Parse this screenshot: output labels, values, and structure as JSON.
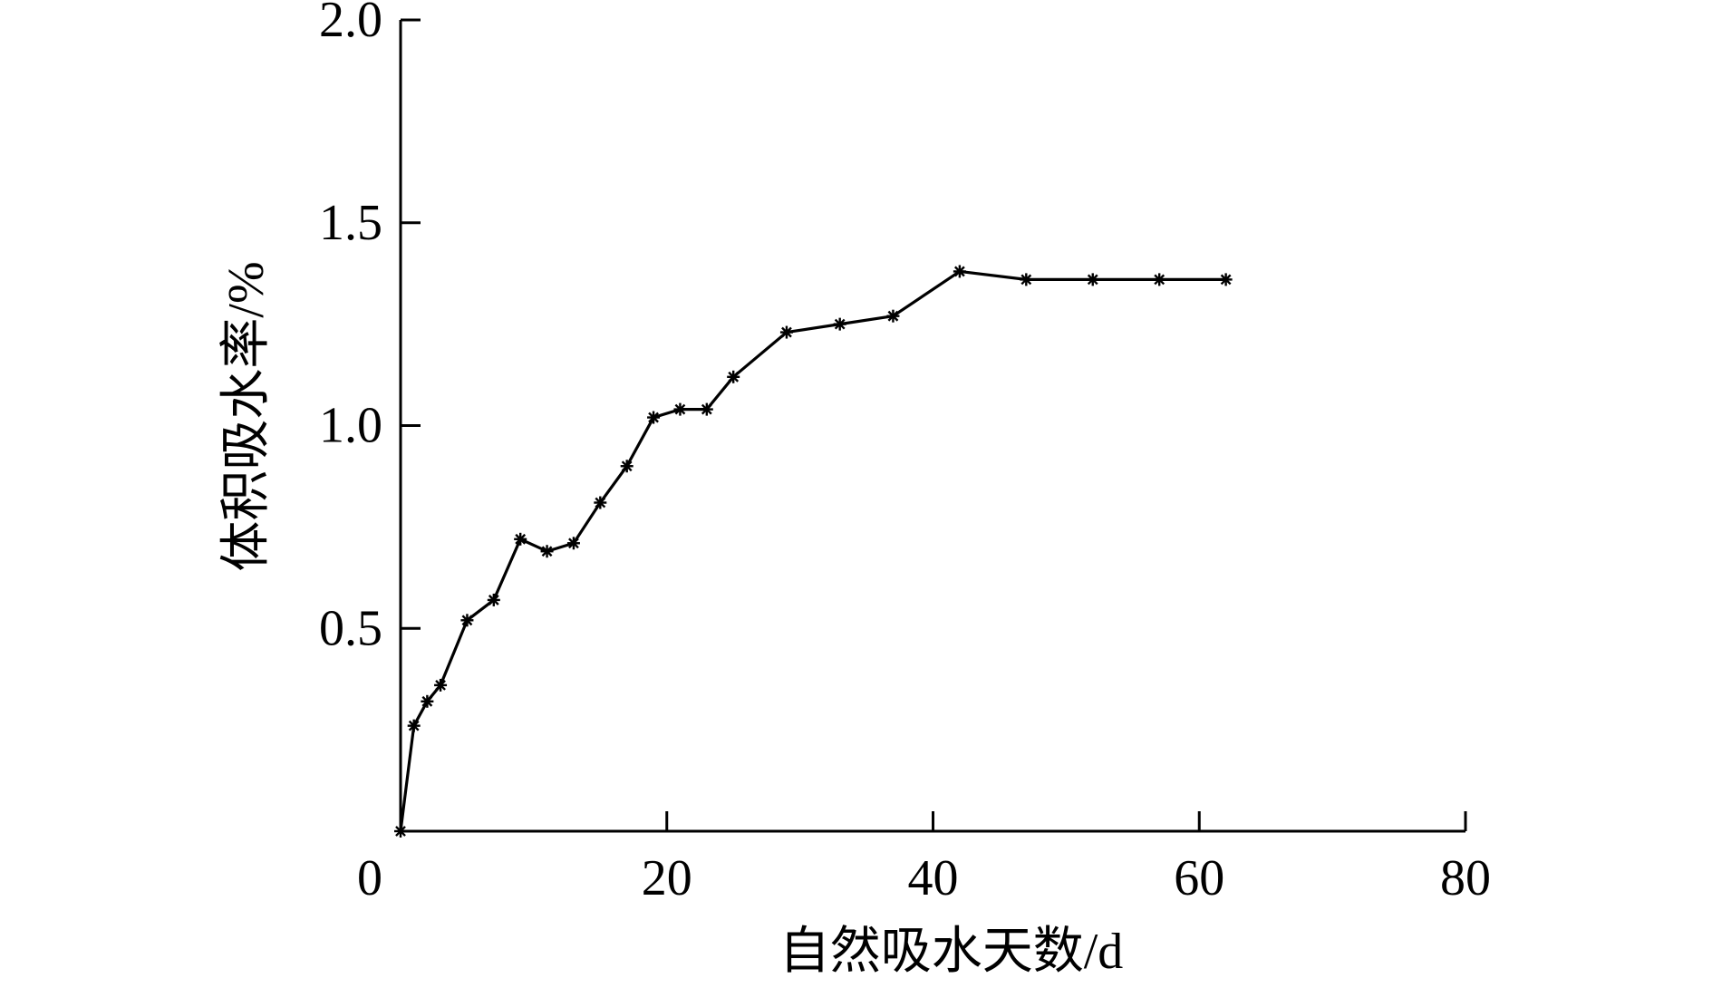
{
  "chart_data": {
    "type": "line",
    "title": "",
    "xlabel": "自然吸水天数/d",
    "ylabel": "体积吸水率/%",
    "xlim": [
      0,
      80
    ],
    "ylim": [
      0,
      2.0
    ],
    "x_ticks": [
      0,
      20,
      40,
      60,
      80
    ],
    "x_tick_labels": [
      "0",
      "20",
      "40",
      "60",
      "80"
    ],
    "y_ticks": [
      0.5,
      1.0,
      1.5,
      2.0
    ],
    "y_tick_labels": [
      "0.5",
      "1.0",
      "1.5",
      "2.0"
    ],
    "grid": false,
    "marker": "asterisk",
    "series": [
      {
        "name": "",
        "color": "#000000",
        "x": [
          0,
          1,
          2,
          3,
          5,
          7,
          9,
          11,
          13,
          15,
          17,
          19,
          21,
          23,
          25,
          29,
          33,
          37,
          42,
          47,
          52,
          57,
          62
        ],
        "y": [
          0,
          0.26,
          0.32,
          0.36,
          0.52,
          0.57,
          0.72,
          0.69,
          0.71,
          0.81,
          0.9,
          1.02,
          1.04,
          1.04,
          1.12,
          1.23,
          1.25,
          1.27,
          1.38,
          1.36,
          1.36,
          1.36,
          1.36
        ]
      }
    ]
  }
}
